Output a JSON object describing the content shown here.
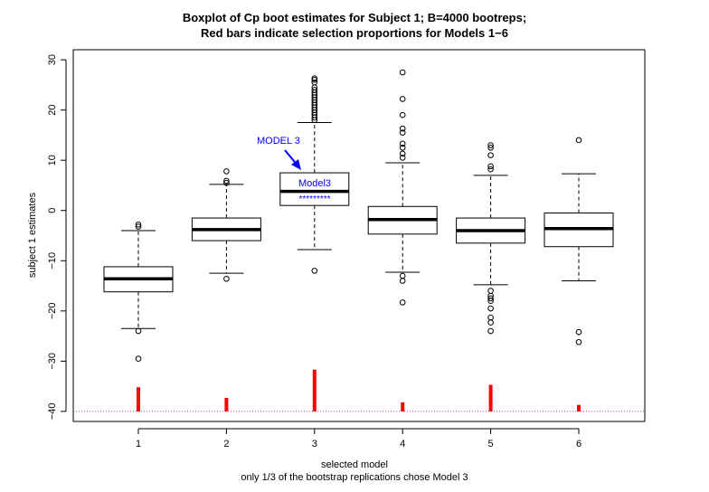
{
  "title_line1": "Boxplot of Cp boot estimates for Subject 1; B=4000 bootreps;",
  "title_line2": "Red bars indicate selection proportions for Models 1−6",
  "xlabel": "selected model",
  "xlabel2": "only 1/3 of the bootstrap replications chose Model 3",
  "ylabel": "subject 1 estimates",
  "annotation_callout": "MODEL 3",
  "annotation_box_label": "Model3",
  "annotation_box_stars": "*********",
  "colors": {
    "box": "#000000",
    "bars": "#ff0000",
    "baseline": "#cc33cc",
    "annotation": "#0000ff"
  },
  "chart_data": {
    "type": "boxplot",
    "categories": [
      "1",
      "2",
      "3",
      "4",
      "5",
      "6"
    ],
    "ylim": [
      -42,
      32
    ],
    "yticks": [
      -40,
      -30,
      -20,
      -10,
      0,
      10,
      20,
      30
    ],
    "boxes": [
      {
        "name": "1",
        "whisker_low": -23.5,
        "q1": -16.2,
        "median": -13.6,
        "q3": -11.2,
        "whisker_high": -4.0,
        "outliers": [
          -2.8,
          -3.2,
          -24.0,
          -29.5
        ]
      },
      {
        "name": "2",
        "whisker_low": -12.5,
        "q1": -6.0,
        "median": -3.8,
        "q3": -1.5,
        "whisker_high": 5.2,
        "outliers": [
          5.5,
          5.9,
          7.8,
          -13.6
        ]
      },
      {
        "name": "3",
        "whisker_low": -7.8,
        "q1": 1.0,
        "median": 3.8,
        "q3": 7.5,
        "whisker_high": 17.5,
        "outliers": [
          18.0,
          18.5,
          19.0,
          19.5,
          20.0,
          20.5,
          21.0,
          21.5,
          22.0,
          22.5,
          23.0,
          23.5,
          24.0,
          24.5,
          25.5,
          26.0,
          26.3,
          -12.0
        ]
      },
      {
        "name": "4",
        "whisker_low": -12.3,
        "q1": -4.7,
        "median": -1.8,
        "q3": 0.8,
        "whisker_high": 9.5,
        "outliers": [
          10.5,
          11.3,
          12.5,
          13.3,
          15.5,
          16.3,
          19.0,
          22.2,
          27.5,
          -13.0,
          -14.0,
          -18.3
        ]
      },
      {
        "name": "5",
        "whisker_low": -14.8,
        "q1": -6.5,
        "median": -4.0,
        "q3": -1.5,
        "whisker_high": 7.0,
        "outliers": [
          8.2,
          8.8,
          11.0,
          12.5,
          13.0,
          -16.0,
          -17.0,
          -17.5,
          -18.0,
          -19.5,
          -21.3,
          -22.3,
          -24.0
        ]
      },
      {
        "name": "6",
        "whisker_low": -14.0,
        "q1": -7.2,
        "median": -3.6,
        "q3": -0.5,
        "whisker_high": 7.3,
        "outliers": [
          14.0,
          -24.2,
          -26.2
        ]
      }
    ],
    "selection_bars": {
      "baseline": -40,
      "tops": [
        -35.2,
        -37.3,
        -31.7,
        -38.2,
        -34.7,
        -38.7
      ]
    }
  }
}
